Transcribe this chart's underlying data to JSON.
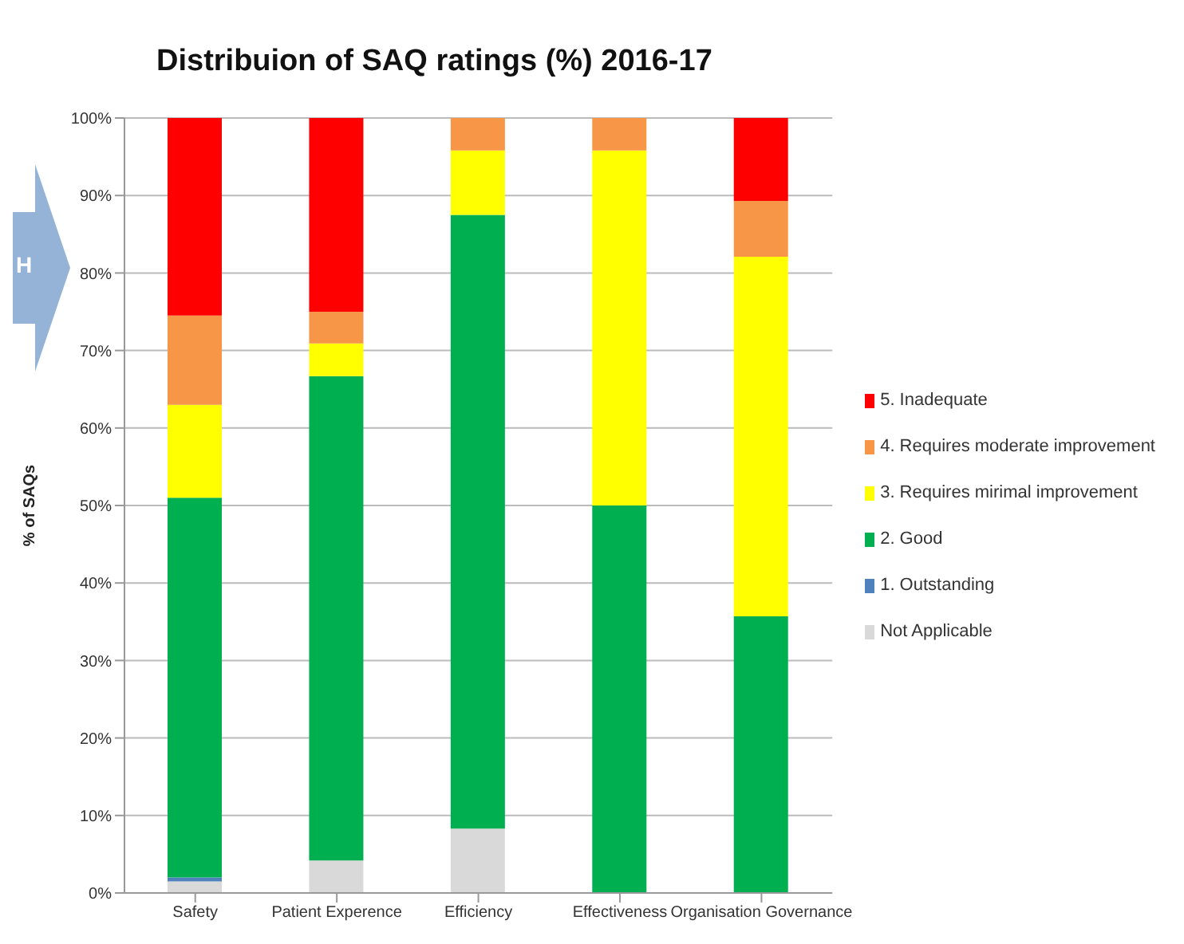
{
  "chart_data": {
    "type": "bar",
    "title": "Distribuion of SAQ ratings (%) 2016-17",
    "ylabel": "% of SAQs",
    "stacked": true,
    "categories": [
      "Safety",
      "Patient Experence",
      "Efficiency",
      "Effectiveness",
      "Organisation Governance"
    ],
    "series": [
      {
        "name": "Not Applicable",
        "color": "#d9d9d9",
        "values": [
          1.5,
          4.2,
          8.3,
          0,
          0
        ]
      },
      {
        "name": "1. Outstanding",
        "color": "#4f81bd",
        "values": [
          0.5,
          0,
          0,
          0,
          0
        ]
      },
      {
        "name": "2. Good",
        "color": "#00b050",
        "values": [
          49,
          62.5,
          79.2,
          50,
          35.7
        ]
      },
      {
        "name": "3. Requires mirimal improvement",
        "color": "#ffff00",
        "values": [
          12,
          4.2,
          8.3,
          45.8,
          46.4
        ]
      },
      {
        "name": "4. Requires moderate improvement",
        "color": "#f79646",
        "values": [
          11.5,
          4.1,
          4.2,
          4.2,
          7.2
        ]
      },
      {
        "name": "5. Inadequate",
        "color": "#ff0000",
        "values": [
          25.5,
          25,
          0,
          0,
          10.7
        ]
      }
    ],
    "ylim": [
      0,
      100
    ],
    "yticks": [
      {
        "value": 0,
        "label": "0%"
      },
      {
        "value": 10,
        "label": "10%"
      },
      {
        "value": 20,
        "label": "20%"
      },
      {
        "value": 30,
        "label": "30%"
      },
      {
        "value": 40,
        "label": "40%"
      },
      {
        "value": 50,
        "label": "50%"
      },
      {
        "value": 60,
        "label": "60%"
      },
      {
        "value": 70,
        "label": "70%"
      },
      {
        "value": 80,
        "label": "80%"
      },
      {
        "value": 90,
        "label": "90%"
      },
      {
        "value": 100,
        "label": "100%"
      }
    ],
    "grid": "y",
    "legend": "right",
    "annotations": [
      "H"
    ]
  }
}
